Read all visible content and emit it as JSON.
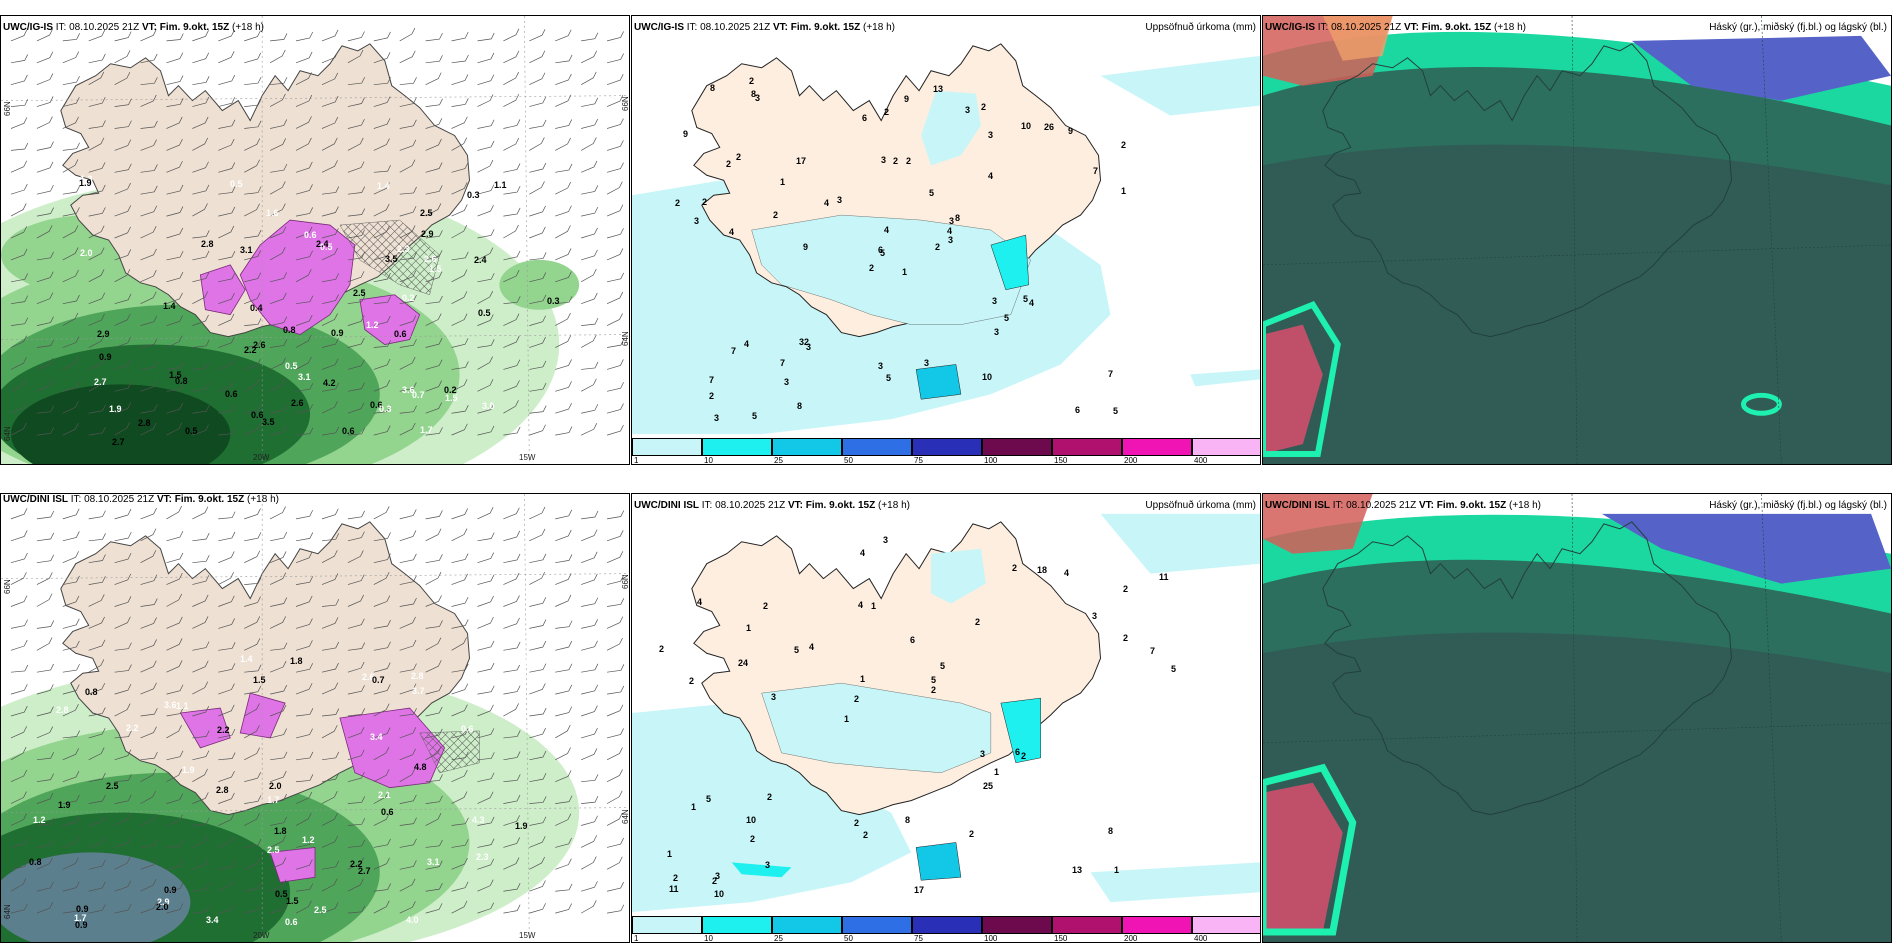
{
  "panels": [
    {
      "model": "UWC/IG-IS",
      "it": "08.10.2025 21Z",
      "vt": "Fim. 9.okt. 15Z",
      "lead": "(+18 h)",
      "right": ""
    },
    {
      "model": "UWC/IG-IS",
      "it": "08.10.2025 21Z",
      "vt": "Fim. 9.okt. 15Z",
      "lead": "(+18 h)",
      "right": "Uppsöfnuð úrkoma (mm)"
    },
    {
      "model": "UWC/IG-IS",
      "it": "08.10.2025 21Z",
      "vt": "Fim. 9.okt. 15Z",
      "lead": "(+18 h)",
      "right": "Háský (gr.), miðský (fj.bl.) og lágský (bl.)"
    },
    {
      "model": "UWC/DINI ISL",
      "it": "08.10.2025 21Z",
      "vt": "Fim. 9.okt. 15Z",
      "lead": "(+18 h)",
      "right": ""
    },
    {
      "model": "UWC/DINI ISL",
      "it": "08.10.2025 21Z",
      "vt": "Fim. 9.okt. 15Z",
      "lead": "(+18 h)",
      "right": "Uppsöfnuð úrkoma (mm)"
    },
    {
      "model": "UWC/DINI ISL",
      "it": "08.10.2025 21Z",
      "vt": "Fim. 9.okt. 15Z",
      "lead": "(+18 h)",
      "right": "Háský (gr.), miðský (fj.bl.) og lágský (bl.)"
    }
  ],
  "it_label": "IT:",
  "vt_label": "VT:",
  "axes": {
    "lat_66": "66N",
    "lat_64": "64N",
    "lon_20": "20W",
    "lon_15": "15W"
  },
  "legend": {
    "ticks": [
      "1",
      "10",
      "25",
      "50",
      "75",
      "100",
      "150",
      "200",
      "400"
    ],
    "colors": [
      "#c8f6f8",
      "#1ef0f0",
      "#12c8e6",
      "#2f6fe6",
      "#2a2fb8",
      "#6d0a4e",
      "#b0106e",
      "#f014b4",
      "#f8b4f4"
    ]
  },
  "precip_labels_ig": [
    "1",
    "2",
    "5",
    "7",
    "3",
    "3",
    "2",
    "2",
    "3",
    "2",
    "3",
    "5",
    "4",
    "2",
    "2",
    "4",
    "5",
    "3",
    "5",
    "4",
    "3",
    "2",
    "3",
    "2",
    "8",
    "4",
    "2",
    "2",
    "3",
    "3",
    "1",
    "6",
    "3",
    "4",
    "17",
    "10",
    "32",
    "6",
    "7",
    "5",
    "13",
    "4",
    "2",
    "3",
    "8",
    "2",
    "4",
    "3",
    "5",
    "3",
    "7",
    "7",
    "9",
    "5",
    "10",
    "7",
    "8",
    "8",
    "3",
    "9",
    "9",
    "9",
    "2",
    "1",
    "26",
    "2",
    "3",
    "6"
  ],
  "precip_labels_dini": [
    "1",
    "2",
    "2",
    "1",
    "2",
    "3",
    "4",
    "6",
    "5",
    "4",
    "1",
    "2",
    "1",
    "5",
    "2",
    "4",
    "4",
    "5",
    "3",
    "2",
    "2",
    "2",
    "1",
    "2",
    "2",
    "2",
    "13",
    "8",
    "6",
    "17",
    "5",
    "24",
    "25",
    "3",
    "7",
    "5",
    "2",
    "2",
    "2",
    "1",
    "3",
    "11",
    "1",
    "2",
    "10",
    "10",
    "11",
    "8",
    "4",
    "3",
    "3",
    "2",
    "1",
    "18",
    "2"
  ],
  "wind_labels_ig": [
    "1.1",
    "0.8",
    "0.6",
    "0.6",
    "0.5",
    "0.8",
    "0.3",
    "2.0",
    "0.9",
    "1.5",
    "1.3",
    "1.1",
    "0.3",
    "0.2",
    "2.3",
    "1.5",
    "3.1",
    "1.4",
    "0.4",
    "1.6",
    "1.7",
    "2.5",
    "2.4",
    "2.6",
    "1.9",
    "0.3",
    "0.2",
    "2.5",
    "1.9",
    "1.4",
    "1.2",
    "0.5",
    "0.6",
    "2.2",
    "2.8",
    "2.9",
    "2.7",
    "3.0",
    "3.1",
    "2.7",
    "2.6",
    "2.6",
    "2.4",
    "2.8",
    "2.9",
    "3.6",
    "3.5",
    "3.5",
    "0.5",
    "0.6",
    "0.7",
    "1.5",
    "0.5",
    "0.6",
    "0.9",
    "4.2",
    "0.5",
    "0.6"
  ],
  "wind_labels_dini": [
    "1.9",
    "2.9",
    "0.6",
    "0.8",
    "1.5",
    "1.4",
    "0.9",
    "0.5",
    "2.0",
    "2.6",
    "1.5",
    "2.0",
    "1.8",
    "2.2",
    "1.2",
    "0.9",
    "1.1",
    "0.8",
    "0.7",
    "0.6",
    "1.8",
    "2.5",
    "2.8",
    "2.1",
    "2.8",
    "3.4",
    "4.3",
    "4.8",
    "3.7",
    "3.6",
    "4.0",
    "2.5",
    "2.5",
    "2.8",
    "3.4",
    "3.1",
    "2.7",
    "2.8",
    "2.2",
    "1.9",
    "2.3",
    "2.2",
    "1.7",
    "1.7",
    "0.6",
    "0.9",
    "1.9",
    "1.2"
  ]
}
